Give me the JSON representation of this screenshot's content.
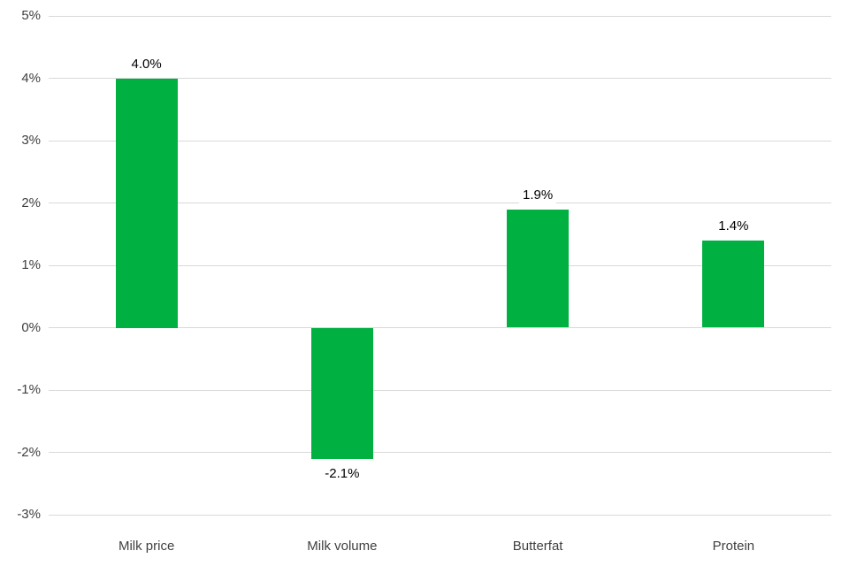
{
  "chart_data": {
    "type": "bar",
    "categories": [
      "Milk price",
      "Milk volume",
      "Butterfat",
      "Protein"
    ],
    "values": [
      4.0,
      -2.1,
      1.9,
      1.4
    ],
    "data_labels": [
      "4.0%",
      "-2.1%",
      "1.9%",
      "1.4%"
    ],
    "title": "",
    "xlabel": "",
    "ylabel": "",
    "ylim": [
      -3,
      5
    ],
    "ytick_step": 1,
    "ytick_labels": [
      "5%",
      "4%",
      "3%",
      "2%",
      "1%",
      "0%",
      "-1%",
      "-2%",
      "-3%"
    ],
    "grid": true,
    "legend": false,
    "colors": {
      "bar": "#00b142",
      "gridline": "#d9d9d9",
      "data_label": "#000000",
      "axis_text": "#404040",
      "background": "#ffffff"
    }
  }
}
